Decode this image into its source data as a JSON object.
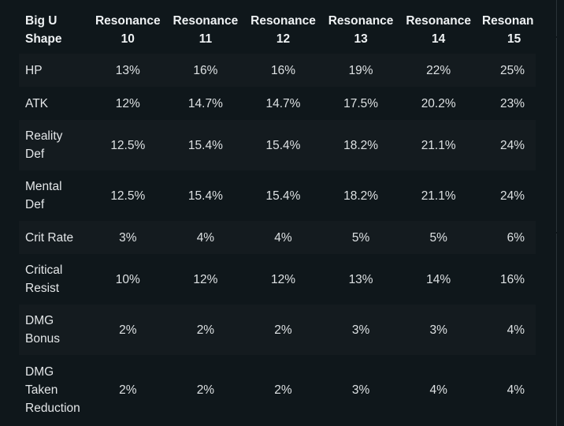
{
  "table": {
    "headers": [
      {
        "line1": "Big U",
        "line2": "Shape"
      },
      {
        "line1": "Resonance",
        "line2": "10"
      },
      {
        "line1": "Resonance",
        "line2": "11"
      },
      {
        "line1": "Resonance",
        "line2": "12"
      },
      {
        "line1": "Resonance",
        "line2": "13"
      },
      {
        "line1": "Resonance",
        "line2": "14"
      },
      {
        "line1": "Resonan",
        "line2": "15"
      }
    ],
    "rows": [
      {
        "stat": [
          "HP"
        ],
        "values": [
          "13%",
          "16%",
          "16%",
          "19%",
          "22%",
          "25%"
        ]
      },
      {
        "stat": [
          "ATK"
        ],
        "values": [
          "12%",
          "14.7%",
          "14.7%",
          "17.5%",
          "20.2%",
          "23%"
        ]
      },
      {
        "stat": [
          "Reality",
          "Def"
        ],
        "values": [
          "12.5%",
          "15.4%",
          "15.4%",
          "18.2%",
          "21.1%",
          "24%"
        ]
      },
      {
        "stat": [
          "Mental",
          "Def"
        ],
        "values": [
          "12.5%",
          "15.4%",
          "15.4%",
          "18.2%",
          "21.1%",
          "24%"
        ]
      },
      {
        "stat": [
          "Crit Rate"
        ],
        "values": [
          "3%",
          "4%",
          "4%",
          "5%",
          "5%",
          "6%"
        ]
      },
      {
        "stat": [
          "Critical",
          "Resist"
        ],
        "values": [
          "10%",
          "12%",
          "12%",
          "13%",
          "14%",
          "16%"
        ]
      },
      {
        "stat": [
          "DMG",
          "Bonus"
        ],
        "values": [
          "2%",
          "2%",
          "2%",
          "3%",
          "3%",
          "4%"
        ]
      },
      {
        "stat": [
          "DMG",
          "Taken",
          "Reduction"
        ],
        "values": [
          "2%",
          "2%",
          "2%",
          "3%",
          "4%",
          "4%"
        ]
      }
    ]
  }
}
